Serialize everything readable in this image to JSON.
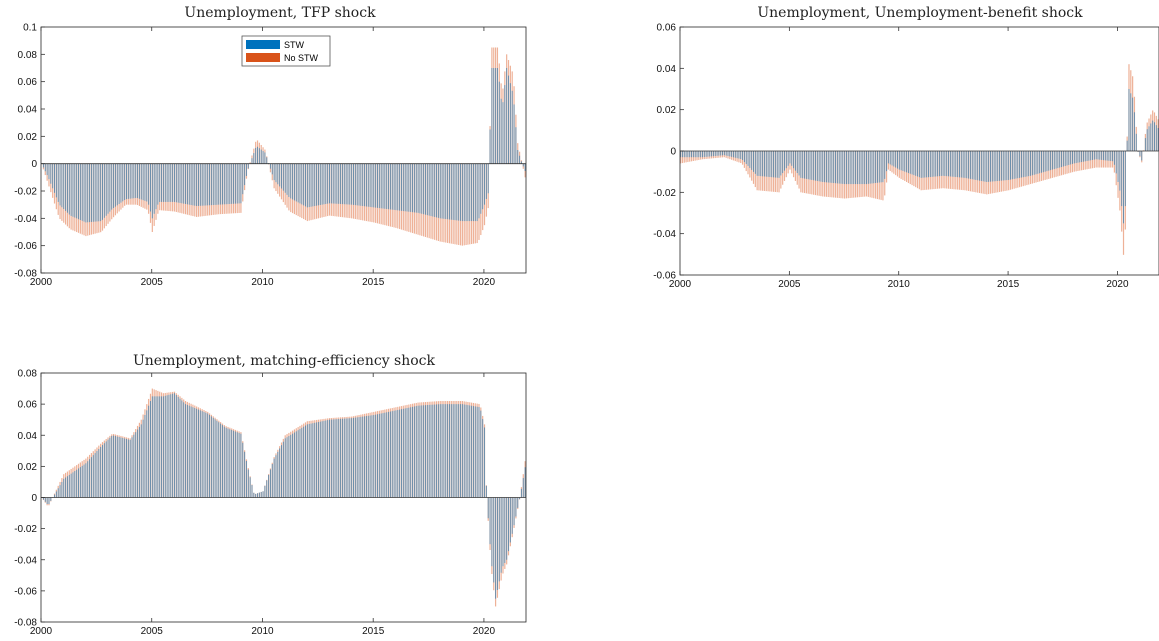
{
  "colors": {
    "stw": "#0072BD",
    "no_stw": "#D95319"
  },
  "chart_data": [
    {
      "type": "bar",
      "title": "Unemployment, TFP shock",
      "xlim": [
        2000,
        2021.9
      ],
      "ylim": [
        -0.08,
        0.1
      ],
      "x_ticks": [
        "2000",
        "2005",
        "2010",
        "2015",
        "2020"
      ],
      "y_ticks": [
        "0.1",
        "0.08",
        "0.06",
        "0.04",
        "0.02",
        "0",
        "-0.02",
        "-0.04",
        "-0.06",
        "-0.08"
      ],
      "legend": {
        "placement": "top-center",
        "entries": [
          "STW",
          "No STW"
        ]
      },
      "series": [
        {
          "name": "STW",
          "anchors": [
            [
              2000.0,
              0
            ],
            [
              2000.3,
              -0.01
            ],
            [
              2000.8,
              -0.03
            ],
            [
              2001.3,
              -0.038
            ],
            [
              2002.0,
              -0.043
            ],
            [
              2002.7,
              -0.042
            ],
            [
              2003.2,
              -0.033
            ],
            [
              2003.8,
              -0.026
            ],
            [
              2004.3,
              -0.025
            ],
            [
              2004.8,
              -0.028
            ],
            [
              2005.0,
              -0.04
            ],
            [
              2005.3,
              -0.028
            ],
            [
              2006.0,
              -0.028
            ],
            [
              2007.0,
              -0.031
            ],
            [
              2008.0,
              -0.03
            ],
            [
              2009.0,
              -0.029
            ],
            [
              2009.3,
              -0.005
            ],
            [
              2009.7,
              0.013
            ],
            [
              2010.1,
              0.008
            ],
            [
              2010.5,
              -0.012
            ],
            [
              2011.2,
              -0.025
            ],
            [
              2012.0,
              -0.032
            ],
            [
              2013.0,
              -0.029
            ],
            [
              2014.0,
              -0.03
            ],
            [
              2015.0,
              -0.032
            ],
            [
              2016.0,
              -0.034
            ],
            [
              2017.0,
              -0.036
            ],
            [
              2018.0,
              -0.04
            ],
            [
              2019.0,
              -0.042
            ],
            [
              2019.7,
              -0.042
            ],
            [
              2020.0,
              -0.03
            ],
            [
              2020.2,
              -0.02
            ],
            [
              2020.3,
              0.07
            ],
            [
              2020.6,
              0.07
            ],
            [
              2020.8,
              0.04
            ],
            [
              2021.0,
              0.07
            ],
            [
              2021.3,
              0.05
            ],
            [
              2021.5,
              0.01
            ],
            [
              2021.7,
              0.0
            ],
            [
              2021.9,
              -0.008
            ]
          ]
        },
        {
          "name": "No STW",
          "anchors": [
            [
              2000.0,
              0
            ],
            [
              2000.3,
              -0.015
            ],
            [
              2000.8,
              -0.04
            ],
            [
              2001.3,
              -0.048
            ],
            [
              2002.0,
              -0.053
            ],
            [
              2002.7,
              -0.05
            ],
            [
              2003.2,
              -0.04
            ],
            [
              2003.8,
              -0.03
            ],
            [
              2004.3,
              -0.03
            ],
            [
              2004.8,
              -0.034
            ],
            [
              2005.0,
              -0.05
            ],
            [
              2005.3,
              -0.034
            ],
            [
              2006.0,
              -0.035
            ],
            [
              2007.0,
              -0.039
            ],
            [
              2008.0,
              -0.037
            ],
            [
              2009.0,
              -0.036
            ],
            [
              2009.3,
              -0.006
            ],
            [
              2009.7,
              0.018
            ],
            [
              2010.1,
              0.01
            ],
            [
              2010.5,
              -0.018
            ],
            [
              2011.2,
              -0.035
            ],
            [
              2012.0,
              -0.042
            ],
            [
              2013.0,
              -0.038
            ],
            [
              2014.0,
              -0.04
            ],
            [
              2015.0,
              -0.043
            ],
            [
              2016.0,
              -0.047
            ],
            [
              2017.0,
              -0.052
            ],
            [
              2018.0,
              -0.057
            ],
            [
              2019.0,
              -0.06
            ],
            [
              2019.7,
              -0.058
            ],
            [
              2020.0,
              -0.045
            ],
            [
              2020.2,
              -0.03
            ],
            [
              2020.3,
              0.085
            ],
            [
              2020.6,
              0.085
            ],
            [
              2020.8,
              0.05
            ],
            [
              2021.0,
              0.08
            ],
            [
              2021.3,
              0.065
            ],
            [
              2021.5,
              0.015
            ],
            [
              2021.7,
              0.0
            ],
            [
              2021.9,
              -0.015
            ]
          ]
        }
      ]
    },
    {
      "type": "bar",
      "title": "Unemployment, Unemployment-benefit shock",
      "xlim": [
        2000,
        2021.9
      ],
      "ylim": [
        -0.06,
        0.06
      ],
      "x_ticks": [
        "2000",
        "2005",
        "2010",
        "2015",
        "2020"
      ],
      "y_ticks": [
        "0.06",
        "0.04",
        "0.02",
        "0",
        "-0.02",
        "-0.04",
        "-0.06"
      ],
      "series": [
        {
          "name": "STW",
          "anchors": [
            [
              2000.0,
              -0.003
            ],
            [
              2001.0,
              -0.003
            ],
            [
              2002.0,
              -0.002
            ],
            [
              2002.8,
              -0.004
            ],
            [
              2003.5,
              -0.012
            ],
            [
              2004.5,
              -0.013
            ],
            [
              2005.0,
              -0.006
            ],
            [
              2005.5,
              -0.013
            ],
            [
              2006.5,
              -0.015
            ],
            [
              2007.5,
              -0.016
            ],
            [
              2008.5,
              -0.016
            ],
            [
              2009.3,
              -0.015
            ],
            [
              2009.5,
              -0.006
            ],
            [
              2010.0,
              -0.009
            ],
            [
              2011.0,
              -0.013
            ],
            [
              2012.0,
              -0.012
            ],
            [
              2013.0,
              -0.013
            ],
            [
              2014.0,
              -0.015
            ],
            [
              2015.0,
              -0.014
            ],
            [
              2016.0,
              -0.012
            ],
            [
              2017.0,
              -0.009
            ],
            [
              2018.0,
              -0.006
            ],
            [
              2019.0,
              -0.004
            ],
            [
              2019.8,
              -0.005
            ],
            [
              2020.1,
              -0.02
            ],
            [
              2020.3,
              -0.04
            ],
            [
              2020.4,
              0.0
            ],
            [
              2020.5,
              0.03
            ],
            [
              2020.7,
              0.025
            ],
            [
              2020.9,
              0.0
            ],
            [
              2021.1,
              -0.005
            ],
            [
              2021.3,
              0.01
            ],
            [
              2021.6,
              0.015
            ],
            [
              2021.9,
              0.01
            ]
          ]
        },
        {
          "name": "No STW",
          "anchors": [
            [
              2000.0,
              -0.006
            ],
            [
              2001.0,
              -0.004
            ],
            [
              2002.0,
              -0.003
            ],
            [
              2002.8,
              -0.006
            ],
            [
              2003.5,
              -0.019
            ],
            [
              2004.5,
              -0.02
            ],
            [
              2005.0,
              -0.009
            ],
            [
              2005.5,
              -0.02
            ],
            [
              2006.5,
              -0.022
            ],
            [
              2007.5,
              -0.023
            ],
            [
              2008.5,
              -0.022
            ],
            [
              2009.3,
              -0.024
            ],
            [
              2009.5,
              -0.009
            ],
            [
              2010.0,
              -0.013
            ],
            [
              2011.0,
              -0.019
            ],
            [
              2012.0,
              -0.018
            ],
            [
              2013.0,
              -0.019
            ],
            [
              2014.0,
              -0.021
            ],
            [
              2015.0,
              -0.019
            ],
            [
              2016.0,
              -0.016
            ],
            [
              2017.0,
              -0.013
            ],
            [
              2018.0,
              -0.01
            ],
            [
              2019.0,
              -0.008
            ],
            [
              2019.8,
              -0.008
            ],
            [
              2020.1,
              -0.03
            ],
            [
              2020.3,
              -0.057
            ],
            [
              2020.4,
              0.0
            ],
            [
              2020.5,
              0.042
            ],
            [
              2020.7,
              0.035
            ],
            [
              2020.9,
              0.0
            ],
            [
              2021.1,
              -0.006
            ],
            [
              2021.3,
              0.013
            ],
            [
              2021.6,
              0.02
            ],
            [
              2021.9,
              0.014
            ]
          ]
        }
      ]
    },
    {
      "type": "bar",
      "title": "Unemployment, matching-efficiency shock",
      "xlim": [
        2000,
        2021.9
      ],
      "ylim": [
        -0.08,
        0.08
      ],
      "x_ticks": [
        "2000",
        "2005",
        "2010",
        "2015",
        "2020"
      ],
      "y_ticks": [
        "0.08",
        "0.06",
        "0.04",
        "0.02",
        "0",
        "-0.02",
        "-0.04",
        "-0.06",
        "-0.08"
      ],
      "series": [
        {
          "name": "STW",
          "anchors": [
            [
              2000.0,
              0.0
            ],
            [
              2000.3,
              -0.005
            ],
            [
              2001.0,
              0.012
            ],
            [
              2002.0,
              0.022
            ],
            [
              2002.7,
              0.033
            ],
            [
              2003.2,
              0.04
            ],
            [
              2004.0,
              0.037
            ],
            [
              2004.5,
              0.047
            ],
            [
              2005.0,
              0.065
            ],
            [
              2005.5,
              0.065
            ],
            [
              2006.0,
              0.067
            ],
            [
              2006.5,
              0.06
            ],
            [
              2007.5,
              0.054
            ],
            [
              2008.3,
              0.045
            ],
            [
              2009.0,
              0.041
            ],
            [
              2009.3,
              0.02
            ],
            [
              2009.6,
              0.002
            ],
            [
              2010.0,
              0.004
            ],
            [
              2010.5,
              0.025
            ],
            [
              2011.0,
              0.038
            ],
            [
              2012.0,
              0.047
            ],
            [
              2013.0,
              0.05
            ],
            [
              2014.0,
              0.051
            ],
            [
              2015.0,
              0.053
            ],
            [
              2016.0,
              0.056
            ],
            [
              2017.0,
              0.059
            ],
            [
              2018.0,
              0.06
            ],
            [
              2019.0,
              0.06
            ],
            [
              2019.8,
              0.058
            ],
            [
              2020.0,
              0.045
            ],
            [
              2020.1,
              0.0
            ],
            [
              2020.3,
              -0.04
            ],
            [
              2020.5,
              -0.065
            ],
            [
              2020.8,
              -0.045
            ],
            [
              2021.0,
              -0.04
            ],
            [
              2021.3,
              -0.02
            ],
            [
              2021.6,
              0.0
            ],
            [
              2021.9,
              0.025
            ]
          ]
        },
        {
          "name": "No STW",
          "anchors": [
            [
              2000.0,
              0.0
            ],
            [
              2000.3,
              -0.006
            ],
            [
              2001.0,
              0.015
            ],
            [
              2002.0,
              0.025
            ],
            [
              2002.7,
              0.035
            ],
            [
              2003.2,
              0.041
            ],
            [
              2004.0,
              0.038
            ],
            [
              2004.5,
              0.05
            ],
            [
              2005.0,
              0.07
            ],
            [
              2005.5,
              0.067
            ],
            [
              2006.0,
              0.068
            ],
            [
              2006.5,
              0.062
            ],
            [
              2007.5,
              0.055
            ],
            [
              2008.3,
              0.046
            ],
            [
              2009.0,
              0.042
            ],
            [
              2009.3,
              0.021
            ],
            [
              2009.6,
              0.002
            ],
            [
              2010.0,
              0.004
            ],
            [
              2010.5,
              0.026
            ],
            [
              2011.0,
              0.04
            ],
            [
              2012.0,
              0.049
            ],
            [
              2013.0,
              0.051
            ],
            [
              2014.0,
              0.052
            ],
            [
              2015.0,
              0.055
            ],
            [
              2016.0,
              0.058
            ],
            [
              2017.0,
              0.061
            ],
            [
              2018.0,
              0.062
            ],
            [
              2019.0,
              0.062
            ],
            [
              2019.8,
              0.06
            ],
            [
              2020.0,
              0.047
            ],
            [
              2020.1,
              0.0
            ],
            [
              2020.3,
              -0.045
            ],
            [
              2020.5,
              -0.07
            ],
            [
              2020.8,
              -0.05
            ],
            [
              2021.0,
              -0.043
            ],
            [
              2021.3,
              -0.022
            ],
            [
              2021.6,
              0.0
            ],
            [
              2021.9,
              0.03
            ]
          ]
        }
      ]
    }
  ]
}
